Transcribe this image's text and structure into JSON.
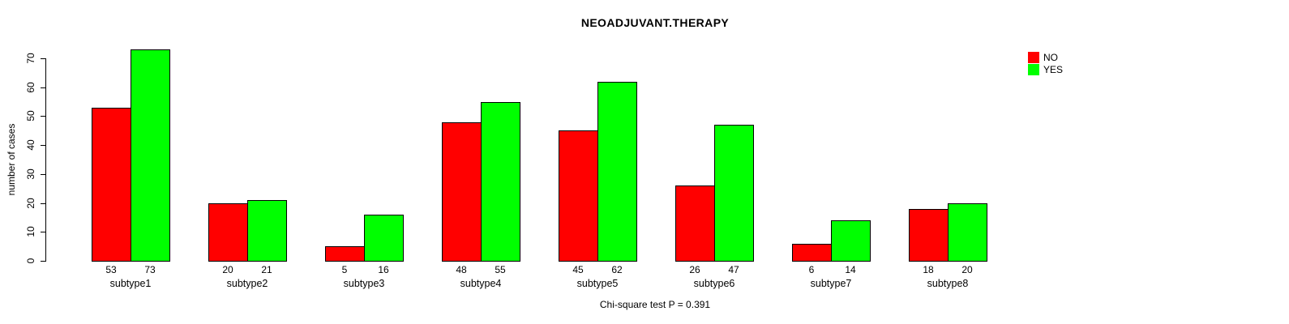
{
  "chart_data": {
    "type": "bar",
    "title": "NEOADJUVANT.THERAPY",
    "ylabel": "number of cases",
    "xlabel": "",
    "categories": [
      "subtype1",
      "subtype2",
      "subtype3",
      "subtype4",
      "subtype5",
      "subtype6",
      "subtype7",
      "subtype8"
    ],
    "series": [
      {
        "name": "NO",
        "color": "#ff0000",
        "values": [
          53,
          20,
          5,
          48,
          45,
          26,
          6,
          18
        ]
      },
      {
        "name": "YES",
        "color": "#00ff00",
        "values": [
          73,
          21,
          16,
          55,
          62,
          47,
          14,
          20
        ]
      }
    ],
    "ylim": [
      0,
      70
    ],
    "yticks": [
      0,
      10,
      20,
      30,
      40,
      50,
      60,
      70
    ],
    "grid": false,
    "bar_value_labels_shown": true,
    "legend_position": "top-right",
    "annotation": "Chi-square test P = 0.391"
  }
}
